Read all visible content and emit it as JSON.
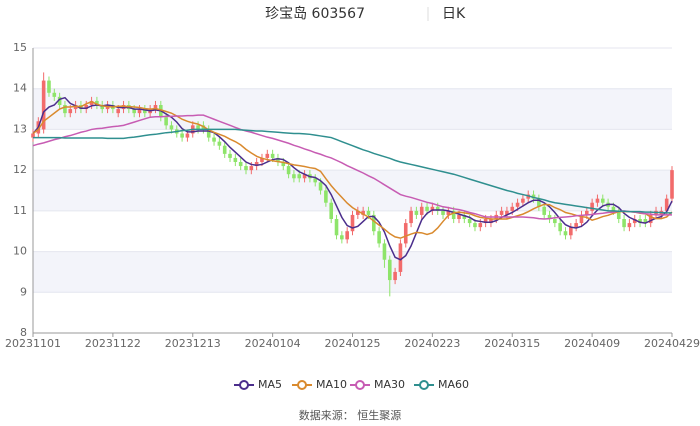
{
  "chart_data": {
    "type": "candlestick",
    "title": "珍宝岛 603567",
    "subtitle": "日K",
    "source": "数据来源： 恒生聚源",
    "up_color": "#f26b6b",
    "down_color": "#8ee46a",
    "ylim": [
      8,
      15
    ],
    "yticks": [
      8,
      9,
      10,
      11,
      12,
      13,
      14,
      15
    ],
    "grid": true,
    "legend": "bottom",
    "categories": [
      "20231101",
      null,
      null,
      null,
      null,
      null,
      null,
      null,
      null,
      null,
      null,
      null,
      null,
      null,
      null,
      "20231122",
      null,
      null,
      null,
      null,
      null,
      null,
      null,
      null,
      null,
      null,
      null,
      null,
      null,
      null,
      "20231213",
      null,
      null,
      null,
      null,
      null,
      null,
      null,
      null,
      null,
      null,
      null,
      null,
      null,
      null,
      "20240104",
      null,
      null,
      null,
      null,
      null,
      null,
      null,
      null,
      null,
      null,
      null,
      null,
      null,
      null,
      "20240125",
      null,
      null,
      null,
      null,
      null,
      null,
      null,
      null,
      null,
      null,
      null,
      null,
      null,
      null,
      "20240223",
      null,
      null,
      null,
      null,
      null,
      null,
      null,
      null,
      null,
      null,
      null,
      null,
      null,
      null,
      "20240315",
      null,
      null,
      null,
      null,
      null,
      null,
      null,
      null,
      null,
      null,
      null,
      null,
      null,
      null,
      "20240409",
      null,
      null,
      null,
      null,
      null,
      null,
      null,
      null,
      null,
      null,
      null,
      null,
      null,
      null,
      "20240429"
    ],
    "candles": {
      "open": [
        12.8,
        12.9,
        13.0,
        14.2,
        13.9,
        13.8,
        13.6,
        13.4,
        13.5,
        13.6,
        13.5,
        13.6,
        13.7,
        13.6,
        13.5,
        13.6,
        13.4,
        13.5,
        13.6,
        13.5,
        13.4,
        13.5,
        13.4,
        13.5,
        13.6,
        13.3,
        13.1,
        13.0,
        12.9,
        12.8,
        12.9,
        13.1,
        13.1,
        13.0,
        12.8,
        12.7,
        12.6,
        12.4,
        12.3,
        12.2,
        12.1,
        12.0,
        12.1,
        12.2,
        12.3,
        12.4,
        12.3,
        12.2,
        12.1,
        11.9,
        11.9,
        11.8,
        11.9,
        11.8,
        11.7,
        11.5,
        11.2,
        10.8,
        10.4,
        10.3,
        10.5,
        10.9,
        10.9,
        11.0,
        10.9,
        10.5,
        10.2,
        9.8,
        9.3,
        9.5,
        10.2,
        10.7,
        11.0,
        10.9,
        11.1,
        11.0,
        11.1,
        11.0,
        10.9,
        11.0,
        10.8,
        10.9,
        10.8,
        10.7,
        10.6,
        10.7,
        10.7,
        10.8,
        10.9,
        10.9,
        11.0,
        11.1,
        11.2,
        11.3,
        11.4,
        11.3,
        11.1,
        10.9,
        10.8,
        10.7,
        10.5,
        10.4,
        10.6,
        10.7,
        10.9,
        11.0,
        11.2,
        11.3,
        11.2,
        11.1,
        11.0,
        10.8,
        10.6,
        10.7,
        10.8,
        10.8,
        10.7,
        10.9,
        10.9,
        11.0,
        11.3
      ],
      "close": [
        12.9,
        13.2,
        14.2,
        13.9,
        13.8,
        13.6,
        13.4,
        13.5,
        13.6,
        13.5,
        13.6,
        13.7,
        13.6,
        13.5,
        13.6,
        13.5,
        13.5,
        13.6,
        13.5,
        13.4,
        13.5,
        13.4,
        13.5,
        13.6,
        13.3,
        13.1,
        13.0,
        12.9,
        12.8,
        12.9,
        13.1,
        13.0,
        13.0,
        12.8,
        12.7,
        12.6,
        12.4,
        12.3,
        12.2,
        12.1,
        12.0,
        12.1,
        12.2,
        12.3,
        12.4,
        12.3,
        12.2,
        12.1,
        11.9,
        11.8,
        11.8,
        11.9,
        11.8,
        11.7,
        11.5,
        11.2,
        10.8,
        10.4,
        10.3,
        10.5,
        10.9,
        11.0,
        11.0,
        10.9,
        10.5,
        10.2,
        9.8,
        9.3,
        9.5,
        10.2,
        10.7,
        11.0,
        10.9,
        11.1,
        11.0,
        11.1,
        11.0,
        10.9,
        11.0,
        10.8,
        10.9,
        10.8,
        10.7,
        10.6,
        10.7,
        10.8,
        10.8,
        10.9,
        11.0,
        11.0,
        11.1,
        11.2,
        11.3,
        11.4,
        11.3,
        11.1,
        10.9,
        10.8,
        10.7,
        10.5,
        10.4,
        10.6,
        10.7,
        10.9,
        11.0,
        11.2,
        11.3,
        11.2,
        11.1,
        11.0,
        10.8,
        10.6,
        10.7,
        10.8,
        10.7,
        10.7,
        10.9,
        11.0,
        11.0,
        11.3,
        12.0
      ],
      "low": [
        12.7,
        12.8,
        12.9,
        13.8,
        13.7,
        13.5,
        13.3,
        13.3,
        13.4,
        13.4,
        13.4,
        13.5,
        13.5,
        13.4,
        13.4,
        13.4,
        13.3,
        13.4,
        13.4,
        13.3,
        13.3,
        13.3,
        13.3,
        13.4,
        13.2,
        13.0,
        12.9,
        12.8,
        12.7,
        12.7,
        12.8,
        12.9,
        12.9,
        12.7,
        12.6,
        12.5,
        12.3,
        12.2,
        12.1,
        12.0,
        11.9,
        11.9,
        12.0,
        12.1,
        12.2,
        12.2,
        12.1,
        12.0,
        11.8,
        11.7,
        11.7,
        11.7,
        11.7,
        11.6,
        11.4,
        11.1,
        10.7,
        10.3,
        10.2,
        10.2,
        10.4,
        10.8,
        10.8,
        10.8,
        10.4,
        10.1,
        9.6,
        8.9,
        9.2,
        9.4,
        10.1,
        10.6,
        10.8,
        10.8,
        10.9,
        10.9,
        10.9,
        10.8,
        10.8,
        10.7,
        10.7,
        10.7,
        10.6,
        10.5,
        10.5,
        10.6,
        10.6,
        10.7,
        10.8,
        10.8,
        10.9,
        11.0,
        11.1,
        11.2,
        11.2,
        11.0,
        10.8,
        10.7,
        10.6,
        10.4,
        10.3,
        10.3,
        10.5,
        10.6,
        10.8,
        10.9,
        11.1,
        11.1,
        11.0,
        10.9,
        10.7,
        10.5,
        10.5,
        10.6,
        10.6,
        10.6,
        10.6,
        10.8,
        10.8,
        10.9,
        11.2
      ],
      "high": [
        13.0,
        13.3,
        14.4,
        14.3,
        14.0,
        13.9,
        13.7,
        13.6,
        13.7,
        13.7,
        13.7,
        13.8,
        13.8,
        13.7,
        13.7,
        13.7,
        13.6,
        13.7,
        13.7,
        13.6,
        13.6,
        13.6,
        13.6,
        13.7,
        13.7,
        13.4,
        13.2,
        13.1,
        13.0,
        13.0,
        13.2,
        13.2,
        13.2,
        13.1,
        12.9,
        12.8,
        12.7,
        12.5,
        12.4,
        12.3,
        12.2,
        12.2,
        12.3,
        12.4,
        12.5,
        12.5,
        12.4,
        12.3,
        12.2,
        12.0,
        12.0,
        12.0,
        12.0,
        11.9,
        11.8,
        11.6,
        11.3,
        10.9,
        10.5,
        10.6,
        11.0,
        11.1,
        11.1,
        11.1,
        11.0,
        10.6,
        10.3,
        9.9,
        9.6,
        10.3,
        10.8,
        11.1,
        11.1,
        11.2,
        11.2,
        11.2,
        11.2,
        11.1,
        11.1,
        11.1,
        11.0,
        11.0,
        10.9,
        10.8,
        10.8,
        10.9,
        10.9,
        11.0,
        11.1,
        11.1,
        11.2,
        11.3,
        11.4,
        11.5,
        11.5,
        11.4,
        11.2,
        11.0,
        10.9,
        10.8,
        10.6,
        10.7,
        10.8,
        11.0,
        11.1,
        11.3,
        11.4,
        11.4,
        11.3,
        11.2,
        11.1,
        10.9,
        10.8,
        10.9,
        10.9,
        10.9,
        11.0,
        11.1,
        11.1,
        11.4,
        12.1
      ]
    },
    "series": [
      {
        "name": "MA5",
        "color": "#4b2e8c",
        "values": [
          12.9,
          13.05,
          13.43,
          13.55,
          13.6,
          13.74,
          13.78,
          13.64,
          13.58,
          13.52,
          13.52,
          13.58,
          13.6,
          13.58,
          13.6,
          13.58,
          13.54,
          13.54,
          13.54,
          13.5,
          13.5,
          13.48,
          13.46,
          13.48,
          13.46,
          13.38,
          13.3,
          13.18,
          13.02,
          12.94,
          12.94,
          12.96,
          12.96,
          12.96,
          12.92,
          12.82,
          12.7,
          12.56,
          12.44,
          12.32,
          12.2,
          12.14,
          12.12,
          12.14,
          12.2,
          12.26,
          12.28,
          12.26,
          12.18,
          12.06,
          11.96,
          11.9,
          11.84,
          11.82,
          11.74,
          11.62,
          11.4,
          11.12,
          10.84,
          10.64,
          10.58,
          10.62,
          10.74,
          10.86,
          10.86,
          10.72,
          10.48,
          10.14,
          9.86,
          9.8,
          9.9,
          10.14,
          10.46,
          10.78,
          10.94,
          11.02,
          11.02,
          11.02,
          11.0,
          10.96,
          10.92,
          10.88,
          10.84,
          10.76,
          10.74,
          10.72,
          10.72,
          10.76,
          10.84,
          10.9,
          10.96,
          11.04,
          11.12,
          11.2,
          11.26,
          11.26,
          11.2,
          11.1,
          10.96,
          10.8,
          10.66,
          10.6,
          10.58,
          10.62,
          10.72,
          10.88,
          11.02,
          11.12,
          11.16,
          11.16,
          11.08,
          10.94,
          10.84,
          10.78,
          10.72,
          10.7,
          10.76,
          10.82,
          10.86,
          10.98,
          11.24
        ]
      },
      {
        "name": "MA10",
        "color": "#d98a2e",
        "values": [
          12.9,
          13.0,
          13.2,
          13.3,
          13.4,
          13.5,
          13.55,
          13.55,
          13.57,
          13.56,
          13.63,
          13.68,
          13.62,
          13.58,
          13.56,
          13.55,
          13.57,
          13.57,
          13.56,
          13.55,
          13.54,
          13.51,
          13.5,
          13.51,
          13.48,
          13.44,
          13.4,
          13.33,
          13.25,
          13.2,
          13.16,
          13.13,
          13.07,
          12.99,
          12.93,
          12.88,
          12.83,
          12.76,
          12.7,
          12.62,
          12.51,
          12.42,
          12.34,
          12.29,
          12.26,
          12.23,
          12.21,
          12.19,
          12.16,
          12.13,
          12.11,
          12.09,
          12.06,
          12.04,
          11.97,
          11.79,
          11.62,
          11.47,
          11.33,
          11.19,
          11.08,
          11.0,
          10.92,
          10.85,
          10.75,
          10.65,
          10.55,
          10.44,
          10.36,
          10.33,
          10.38,
          10.43,
          10.47,
          10.46,
          10.42,
          10.46,
          10.58,
          10.74,
          10.89,
          10.95,
          10.97,
          10.95,
          10.93,
          10.88,
          10.84,
          10.82,
          10.8,
          10.8,
          10.8,
          10.8,
          10.84,
          10.88,
          10.92,
          10.98,
          11.05,
          11.11,
          11.16,
          11.15,
          11.08,
          11.03,
          10.96,
          10.93,
          10.89,
          10.86,
          10.84,
          10.77,
          10.81,
          10.86,
          10.89,
          10.94,
          10.98,
          10.98,
          10.98,
          10.97,
          10.94,
          10.93,
          10.85,
          10.81,
          10.81,
          10.85,
          10.97
        ]
      },
      {
        "name": "MA30",
        "color": "#c75cb3",
        "values": [
          12.6,
          12.64,
          12.67,
          12.71,
          12.75,
          12.78,
          12.82,
          12.85,
          12.89,
          12.93,
          12.96,
          13.0,
          13.02,
          13.03,
          13.05,
          13.07,
          13.08,
          13.1,
          13.14,
          13.18,
          13.22,
          13.26,
          13.3,
          13.31,
          13.31,
          13.32,
          13.32,
          13.33,
          13.33,
          13.34,
          13.34,
          13.35,
          13.35,
          13.3,
          13.25,
          13.2,
          13.15,
          13.1,
          13.05,
          13.0,
          12.96,
          12.93,
          12.89,
          12.85,
          12.81,
          12.78,
          12.74,
          12.7,
          12.66,
          12.61,
          12.57,
          12.52,
          12.48,
          12.43,
          12.39,
          12.34,
          12.3,
          12.24,
          12.18,
          12.11,
          12.05,
          11.99,
          11.93,
          11.86,
          11.8,
          11.72,
          11.64,
          11.56,
          11.48,
          11.4,
          11.36,
          11.33,
          11.29,
          11.25,
          11.21,
          11.18,
          11.14,
          11.1,
          11.08,
          11.05,
          11.03,
          11.0,
          10.96,
          10.93,
          10.89,
          10.85,
          10.85,
          10.85,
          10.85,
          10.85,
          10.85,
          10.85,
          10.85,
          10.84,
          10.83,
          10.81,
          10.8,
          10.81,
          10.83,
          10.84,
          10.85,
          10.86,
          10.88,
          10.89,
          10.9,
          10.91,
          10.93,
          10.94,
          10.96,
          10.97,
          10.99,
          11.0,
          10.98,
          10.97,
          10.95,
          10.93,
          10.92,
          10.9,
          10.9,
          10.9,
          10.9
        ]
      },
      {
        "name": "MA60",
        "color": "#2f8f8f",
        "values": [
          12.8,
          12.8,
          12.8,
          12.8,
          12.8,
          12.8,
          12.79,
          12.79,
          12.79,
          12.79,
          12.79,
          12.79,
          12.79,
          12.79,
          12.78,
          12.78,
          12.78,
          12.78,
          12.8,
          12.81,
          12.83,
          12.85,
          12.87,
          12.88,
          12.9,
          12.92,
          12.93,
          12.95,
          12.97,
          12.98,
          13.0,
          13.0,
          13.0,
          13.0,
          13.0,
          13.0,
          13.0,
          13.0,
          13.0,
          12.99,
          12.98,
          12.97,
          12.96,
          12.96,
          12.95,
          12.94,
          12.93,
          12.92,
          12.91,
          12.9,
          12.9,
          12.89,
          12.88,
          12.86,
          12.84,
          12.82,
          12.8,
          12.75,
          12.7,
          12.65,
          12.6,
          12.55,
          12.5,
          12.46,
          12.41,
          12.37,
          12.33,
          12.29,
          12.24,
          12.2,
          12.17,
          12.14,
          12.11,
          12.08,
          12.05,
          12.02,
          11.99,
          11.96,
          11.93,
          11.9,
          11.86,
          11.82,
          11.78,
          11.74,
          11.7,
          11.66,
          11.62,
          11.58,
          11.54,
          11.5,
          11.47,
          11.43,
          11.4,
          11.37,
          11.33,
          11.3,
          11.27,
          11.23,
          11.2,
          11.18,
          11.16,
          11.14,
          11.12,
          11.1,
          11.08,
          11.06,
          11.04,
          11.02,
          11.0,
          11.0,
          10.99,
          10.99,
          10.98,
          10.98,
          10.98,
          10.97,
          10.97,
          10.96,
          10.96,
          10.95,
          10.95
        ]
      }
    ]
  }
}
